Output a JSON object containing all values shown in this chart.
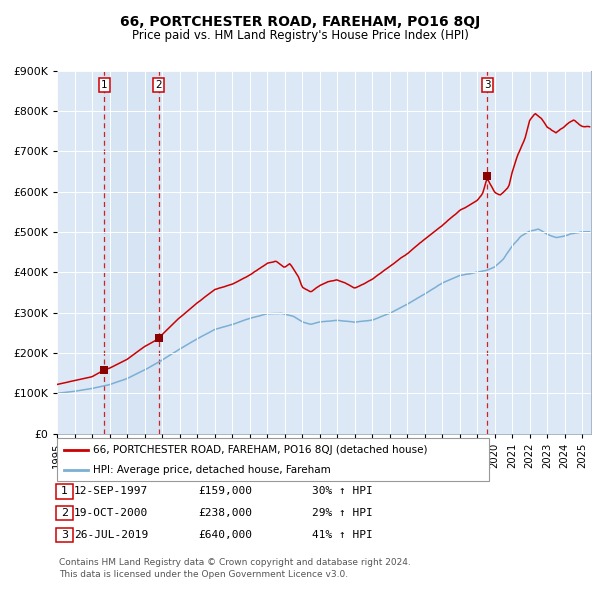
{
  "title": "66, PORTCHESTER ROAD, FAREHAM, PO16 8QJ",
  "subtitle": "Price paid vs. HM Land Registry's House Price Index (HPI)",
  "footer": "Contains HM Land Registry data © Crown copyright and database right 2024.\nThis data is licensed under the Open Government Licence v3.0.",
  "legend_line1": "66, PORTCHESTER ROAD, FAREHAM, PO16 8QJ (detached house)",
  "legend_line2": "HPI: Average price, detached house, Fareham",
  "sales": [
    {
      "num": 1,
      "date": "12-SEP-1997",
      "date_decimal": 1997.7,
      "price": 159000,
      "pct": "30% ↑ HPI"
    },
    {
      "num": 2,
      "date": "19-OCT-2000",
      "date_decimal": 2000.8,
      "price": 238000,
      "pct": "29% ↑ HPI"
    },
    {
      "num": 3,
      "date": "26-JUL-2019",
      "date_decimal": 2019.57,
      "price": 640000,
      "pct": "41% ↑ HPI"
    }
  ],
  "hpi_color": "#7bafd4",
  "price_color": "#cc0000",
  "marker_color": "#8b0000",
  "dashed_line_color": "#cc0000",
  "plot_bg_color": "#dce8f5",
  "grid_color": "#ffffff",
  "ylim": [
    0,
    900000
  ],
  "xlim_start": 1995.0,
  "xlim_end": 2025.5,
  "yticks": [
    0,
    100000,
    200000,
    300000,
    400000,
    500000,
    600000,
    700000,
    800000,
    900000
  ],
  "xticks": [
    1995,
    1996,
    1997,
    1998,
    1999,
    2000,
    2001,
    2002,
    2003,
    2004,
    2005,
    2006,
    2007,
    2008,
    2009,
    2010,
    2011,
    2012,
    2013,
    2014,
    2015,
    2016,
    2017,
    2018,
    2019,
    2020,
    2021,
    2022,
    2023,
    2024,
    2025
  ],
  "hpi_knots": [
    [
      1995.0,
      100000
    ],
    [
      1996.0,
      105000
    ],
    [
      1997.0,
      112000
    ],
    [
      1998.0,
      122000
    ],
    [
      1999.0,
      137000
    ],
    [
      2000.0,
      158000
    ],
    [
      2001.0,
      183000
    ],
    [
      2002.0,
      210000
    ],
    [
      2003.0,
      235000
    ],
    [
      2004.0,
      258000
    ],
    [
      2005.0,
      270000
    ],
    [
      2006.0,
      285000
    ],
    [
      2007.0,
      298000
    ],
    [
      2007.8,
      300000
    ],
    [
      2008.5,
      292000
    ],
    [
      2009.0,
      278000
    ],
    [
      2009.5,
      272000
    ],
    [
      2010.0,
      278000
    ],
    [
      2011.0,
      282000
    ],
    [
      2012.0,
      278000
    ],
    [
      2013.0,
      283000
    ],
    [
      2014.0,
      300000
    ],
    [
      2015.0,
      322000
    ],
    [
      2016.0,
      348000
    ],
    [
      2017.0,
      375000
    ],
    [
      2018.0,
      393000
    ],
    [
      2019.0,
      403000
    ],
    [
      2019.5,
      407000
    ],
    [
      2020.0,
      415000
    ],
    [
      2020.5,
      435000
    ],
    [
      2021.0,
      468000
    ],
    [
      2021.5,
      492000
    ],
    [
      2022.0,
      505000
    ],
    [
      2022.5,
      510000
    ],
    [
      2023.0,
      498000
    ],
    [
      2023.5,
      490000
    ],
    [
      2024.0,
      495000
    ],
    [
      2024.5,
      500000
    ],
    [
      2025.0,
      505000
    ]
  ],
  "price_knots": [
    [
      1995.0,
      122000
    ],
    [
      1996.0,
      132000
    ],
    [
      1997.0,
      142000
    ],
    [
      1997.7,
      159000
    ],
    [
      1998.0,
      163000
    ],
    [
      1999.0,
      185000
    ],
    [
      2000.0,
      218000
    ],
    [
      2000.8,
      238000
    ],
    [
      2001.0,
      248000
    ],
    [
      2002.0,
      290000
    ],
    [
      2003.0,
      328000
    ],
    [
      2004.0,
      362000
    ],
    [
      2005.0,
      375000
    ],
    [
      2006.0,
      398000
    ],
    [
      2007.0,
      428000
    ],
    [
      2007.5,
      435000
    ],
    [
      2008.0,
      420000
    ],
    [
      2008.3,
      430000
    ],
    [
      2008.8,
      395000
    ],
    [
      2009.0,
      370000
    ],
    [
      2009.5,
      358000
    ],
    [
      2010.0,
      375000
    ],
    [
      2010.5,
      385000
    ],
    [
      2011.0,
      390000
    ],
    [
      2011.5,
      382000
    ],
    [
      2012.0,
      368000
    ],
    [
      2012.5,
      378000
    ],
    [
      2013.0,
      390000
    ],
    [
      2014.0,
      420000
    ],
    [
      2015.0,
      453000
    ],
    [
      2016.0,
      488000
    ],
    [
      2017.0,
      522000
    ],
    [
      2018.0,
      560000
    ],
    [
      2018.5,
      572000
    ],
    [
      2019.0,
      585000
    ],
    [
      2019.3,
      600000
    ],
    [
      2019.57,
      640000
    ],
    [
      2020.0,
      605000
    ],
    [
      2020.3,
      598000
    ],
    [
      2020.8,
      620000
    ],
    [
      2021.0,
      658000
    ],
    [
      2021.3,
      700000
    ],
    [
      2021.7,
      740000
    ],
    [
      2022.0,
      790000
    ],
    [
      2022.3,
      808000
    ],
    [
      2022.7,
      795000
    ],
    [
      2023.0,
      775000
    ],
    [
      2023.5,
      760000
    ],
    [
      2024.0,
      775000
    ],
    [
      2024.5,
      790000
    ],
    [
      2025.0,
      775000
    ]
  ]
}
